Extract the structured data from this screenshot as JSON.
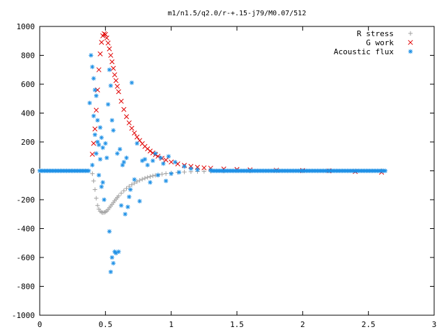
{
  "chart_data": {
    "type": "scatter",
    "title": "m1/n1.5/q2.0/r-+.15-j79/M0.07/512",
    "xlim": [
      0,
      3
    ],
    "ylim": [
      -1000,
      1000
    ],
    "xticks": [
      0,
      0.5,
      1,
      1.5,
      2,
      2.5,
      3
    ],
    "xtick_labels": [
      "0",
      "0.5",
      "1",
      "1.5",
      "2",
      "2.5",
      "3"
    ],
    "yticks": [
      -1000,
      -800,
      -600,
      -400,
      -200,
      0,
      200,
      400,
      600,
      800,
      1000
    ],
    "ytick_labels": [
      "-1000",
      "-800",
      "-600",
      "-400",
      "-200",
      "0",
      "200",
      "400",
      "600",
      "800",
      "1000"
    ],
    "grid": false,
    "legend_position": "top-right",
    "series": [
      {
        "name": "R stress",
        "marker": "plus",
        "color": "#a0a0a0",
        "x": [
          0.4,
          0.41,
          0.42,
          0.43,
          0.44,
          0.45,
          0.46,
          0.47,
          0.48,
          0.49,
          0.5,
          0.51,
          0.52,
          0.53,
          0.54,
          0.55,
          0.56,
          0.57,
          0.58,
          0.59,
          0.6,
          0.62,
          0.64,
          0.66,
          0.68,
          0.7,
          0.72,
          0.74,
          0.76,
          0.78,
          0.8,
          0.82,
          0.84,
          0.86,
          0.88,
          0.9,
          0.93,
          0.96,
          1.0,
          1.05,
          1.1,
          1.15,
          1.2,
          1.25,
          1.3,
          1.4,
          1.5,
          1.6,
          1.8,
          2.0,
          2.2,
          2.4,
          2.6
        ],
        "y": [
          -20,
          -70,
          -130,
          -190,
          -240,
          -265,
          -280,
          -287,
          -290,
          -288,
          -285,
          -278,
          -268,
          -256,
          -244,
          -232,
          -220,
          -208,
          -196,
          -185,
          -174,
          -155,
          -138,
          -122,
          -108,
          -96,
          -85,
          -75,
          -66,
          -58,
          -51,
          -45,
          -40,
          -35,
          -31,
          -28,
          -23,
          -19,
          -15,
          -11,
          -8,
          -6,
          -5,
          -4,
          -3,
          -2,
          -1,
          -1,
          0,
          0,
          0,
          0,
          0
        ]
      },
      {
        "name": "G work",
        "marker": "cross",
        "color": "#e00000",
        "x": [
          0.4,
          0.41,
          0.42,
          0.43,
          0.44,
          0.45,
          0.46,
          0.47,
          0.48,
          0.49,
          0.5,
          0.51,
          0.52,
          0.53,
          0.54,
          0.55,
          0.56,
          0.57,
          0.58,
          0.59,
          0.6,
          0.62,
          0.64,
          0.66,
          0.68,
          0.7,
          0.72,
          0.74,
          0.76,
          0.78,
          0.8,
          0.82,
          0.84,
          0.86,
          0.88,
          0.9,
          0.93,
          0.96,
          1.0,
          1.05,
          1.1,
          1.15,
          1.2,
          1.25,
          1.3,
          1.4,
          1.5,
          1.6,
          1.8,
          2.0,
          2.2,
          2.4,
          2.6
        ],
        "y": [
          115,
          190,
          290,
          420,
          560,
          700,
          810,
          890,
          935,
          950,
          945,
          920,
          885,
          845,
          800,
          755,
          710,
          665,
          625,
          585,
          548,
          482,
          425,
          375,
          332,
          295,
          262,
          234,
          210,
          188,
          169,
          152,
          137,
          124,
          112,
          101,
          87,
          75,
          61,
          48,
          38,
          31,
          25,
          21,
          18,
          13,
          10,
          7,
          4,
          2,
          0,
          -5,
          -10
        ]
      },
      {
        "name": "Acoustic flux",
        "marker": "star",
        "color": "#1e90e6",
        "x": [
          0.38,
          0.39,
          0.4,
          0.4,
          0.41,
          0.41,
          0.42,
          0.42,
          0.43,
          0.43,
          0.44,
          0.44,
          0.45,
          0.45,
          0.46,
          0.46,
          0.47,
          0.47,
          0.48,
          0.48,
          0.49,
          0.5,
          0.51,
          0.52,
          0.53,
          0.53,
          0.54,
          0.54,
          0.55,
          0.55,
          0.56,
          0.56,
          0.57,
          0.58,
          0.59,
          0.6,
          0.61,
          0.62,
          0.63,
          0.64,
          0.65,
          0.66,
          0.67,
          0.68,
          0.69,
          0.7,
          0.72,
          0.74,
          0.76,
          0.78,
          0.8,
          0.82,
          0.84,
          0.86,
          0.88,
          0.9,
          0.92,
          0.94,
          0.96,
          0.98,
          1.0,
          1.03,
          1.06,
          1.1,
          1.15,
          1.2,
          1.3
        ],
        "y": [
          470,
          800,
          720,
          40,
          640,
          380,
          560,
          250,
          520,
          120,
          350,
          200,
          180,
          -30,
          300,
          80,
          230,
          -110,
          160,
          -80,
          -200,
          190,
          90,
          460,
          700,
          -420,
          590,
          -700,
          -600,
          350,
          -640,
          280,
          -560,
          -570,
          120,
          -560,
          150,
          -240,
          40,
          60,
          -300,
          90,
          -250,
          -180,
          -130,
          610,
          -60,
          190,
          -210,
          70,
          80,
          40,
          -80,
          70,
          120,
          -30,
          90,
          50,
          -70,
          100,
          -20,
          60,
          -10,
          30,
          15,
          8,
          5
        ]
      }
    ]
  }
}
